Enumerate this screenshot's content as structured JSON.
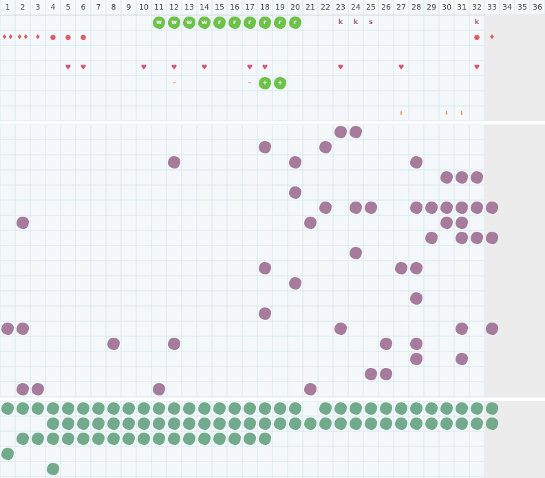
{
  "columns": [
    "1",
    "2",
    "3",
    "4",
    "5",
    "6",
    "7",
    "8",
    "9",
    "10",
    "11",
    "12",
    "13",
    "14",
    "15",
    "16",
    "17",
    "18",
    "19",
    "20",
    "21",
    "22",
    "23",
    "24",
    "25",
    "26",
    "27",
    "28",
    "29",
    "30",
    "31",
    "32",
    "33",
    "34",
    "35",
    "36"
  ],
  "colors": {
    "green": "#6cc24a",
    "purple": "#a67b9c",
    "teal": "#72ab8b",
    "red": "#e35d6a",
    "heart": "#d95574",
    "letter": "#a1607e",
    "dash": "#f08a4b"
  },
  "top_cells": [
    {
      "col": 11,
      "row": 1,
      "kind": "green",
      "text": "w"
    },
    {
      "col": 12,
      "row": 1,
      "kind": "green",
      "text": "w"
    },
    {
      "col": 13,
      "row": 1,
      "kind": "green",
      "text": "w"
    },
    {
      "col": 14,
      "row": 1,
      "kind": "green",
      "text": "w"
    },
    {
      "col": 15,
      "row": 1,
      "kind": "green",
      "text": "r"
    },
    {
      "col": 16,
      "row": 1,
      "kind": "green",
      "text": "r"
    },
    {
      "col": 17,
      "row": 1,
      "kind": "green",
      "text": "r"
    },
    {
      "col": 18,
      "row": 1,
      "kind": "green",
      "text": "r"
    },
    {
      "col": 19,
      "row": 1,
      "kind": "green",
      "text": "r"
    },
    {
      "col": 20,
      "row": 1,
      "kind": "green",
      "text": "r"
    },
    {
      "col": 23,
      "row": 1,
      "kind": "letter",
      "text": "k"
    },
    {
      "col": 24,
      "row": 1,
      "kind": "letter",
      "text": "k"
    },
    {
      "col": 25,
      "row": 1,
      "kind": "letter",
      "text": "s"
    },
    {
      "col": 32,
      "row": 1,
      "kind": "letter",
      "text": "k"
    },
    {
      "col": 1,
      "row": 2,
      "kind": "red",
      "text": "♦♦"
    },
    {
      "col": 2,
      "row": 2,
      "kind": "red",
      "text": "♦♦"
    },
    {
      "col": 3,
      "row": 2,
      "kind": "red",
      "text": "♦"
    },
    {
      "col": 4,
      "row": 2,
      "kind": "red",
      "text": "●"
    },
    {
      "col": 5,
      "row": 2,
      "kind": "red",
      "text": "●"
    },
    {
      "col": 6,
      "row": 2,
      "kind": "red",
      "text": "●"
    },
    {
      "col": 32,
      "row": 2,
      "kind": "red",
      "text": "●"
    },
    {
      "col": 33,
      "row": 2,
      "kind": "red",
      "text": "♦"
    },
    {
      "col": 5,
      "row": 4,
      "kind": "heart",
      "text": "♥"
    },
    {
      "col": 6,
      "row": 4,
      "kind": "heart",
      "text": "♥"
    },
    {
      "col": 10,
      "row": 4,
      "kind": "heart",
      "text": "♥"
    },
    {
      "col": 12,
      "row": 4,
      "kind": "heart",
      "text": "♥"
    },
    {
      "col": 14,
      "row": 4,
      "kind": "heart",
      "text": "♥"
    },
    {
      "col": 17,
      "row": 4,
      "kind": "heart",
      "text": "♥"
    },
    {
      "col": 18,
      "row": 4,
      "kind": "heart",
      "text": "♥"
    },
    {
      "col": 23,
      "row": 4,
      "kind": "heart",
      "text": "♥"
    },
    {
      "col": 27,
      "row": 4,
      "kind": "heart",
      "text": "♥"
    },
    {
      "col": 32,
      "row": 4,
      "kind": "heart",
      "text": "♥"
    },
    {
      "col": 12,
      "row": 5,
      "kind": "dash",
      "text": "–"
    },
    {
      "col": 17,
      "row": 5,
      "kind": "dash",
      "text": "–"
    },
    {
      "col": 18,
      "row": 5,
      "kind": "green",
      "text": "+"
    },
    {
      "col": 19,
      "row": 5,
      "kind": "green",
      "text": "+"
    },
    {
      "col": 27,
      "row": 7,
      "kind": "dash",
      "text": "ı"
    },
    {
      "col": 30,
      "row": 7,
      "kind": "dash",
      "text": "ı"
    },
    {
      "col": 31,
      "row": 7,
      "kind": "dash",
      "text": "ı"
    }
  ],
  "middle_blobs": [
    [
      23,
      0
    ],
    [
      24,
      0
    ],
    [
      18,
      1
    ],
    [
      22,
      1
    ],
    [
      12,
      2
    ],
    [
      20,
      2
    ],
    [
      28,
      2
    ],
    [
      30,
      3
    ],
    [
      31,
      3
    ],
    [
      32,
      3
    ],
    [
      20,
      4
    ],
    [
      22,
      5
    ],
    [
      24,
      5
    ],
    [
      25,
      5
    ],
    [
      28,
      5
    ],
    [
      29,
      5
    ],
    [
      30,
      5
    ],
    [
      31,
      5
    ],
    [
      32,
      5
    ],
    [
      33,
      5
    ],
    [
      2,
      6
    ],
    [
      21,
      6
    ],
    [
      30,
      6
    ],
    [
      31,
      6
    ],
    [
      29,
      7
    ],
    [
      31,
      7
    ],
    [
      32,
      7
    ],
    [
      33,
      7
    ],
    [
      24,
      8
    ],
    [
      18,
      9
    ],
    [
      27,
      9
    ],
    [
      28,
      9
    ],
    [
      20,
      10
    ],
    [
      28,
      11
    ],
    [
      18,
      12
    ],
    [
      1,
      13
    ],
    [
      2,
      13
    ],
    [
      23,
      13
    ],
    [
      31,
      13
    ],
    [
      33,
      13
    ],
    [
      8,
      14
    ],
    [
      12,
      14
    ],
    [
      26,
      14
    ],
    [
      28,
      14
    ],
    [
      28,
      15
    ],
    [
      31,
      15
    ],
    [
      25,
      16
    ],
    [
      26,
      16
    ],
    [
      2,
      17
    ],
    [
      3,
      17
    ],
    [
      11,
      17
    ],
    [
      21,
      17
    ]
  ],
  "bottom_rows": [
    {
      "row": 0,
      "cols": [
        1,
        2,
        3,
        4,
        5,
        6,
        7,
        8,
        9,
        10,
        11,
        12,
        13,
        14,
        15,
        16,
        17,
        18,
        19,
        20,
        22,
        23,
        24,
        25,
        26,
        27,
        28,
        29,
        30,
        31,
        32,
        33
      ]
    },
    {
      "row": 1,
      "cols": [
        4,
        5,
        6,
        7,
        8,
        9,
        10,
        11,
        12,
        13,
        14,
        15,
        16,
        17,
        18,
        19,
        20,
        21,
        22,
        23,
        24,
        25,
        26,
        27,
        28,
        29,
        30,
        31,
        32,
        33
      ]
    },
    {
      "row": 2,
      "cols": [
        2,
        3,
        4,
        5,
        6,
        7,
        8,
        9,
        10,
        11,
        12,
        13,
        14,
        15,
        16,
        17,
        18
      ]
    },
    {
      "row": 3,
      "cols": [
        1
      ]
    },
    {
      "row": 4,
      "cols": [
        4
      ]
    }
  ]
}
